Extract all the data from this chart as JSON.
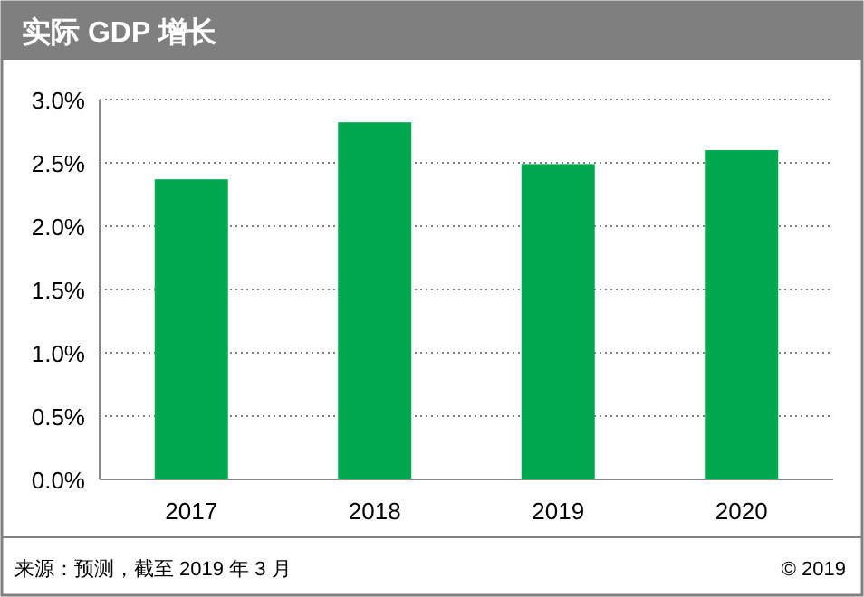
{
  "chart_data": {
    "type": "bar",
    "title": "实际 GDP 增长",
    "categories": [
      "2017",
      "2018",
      "2019",
      "2020"
    ],
    "values": [
      2.37,
      2.82,
      2.49,
      2.6
    ],
    "color": "#00a94f",
    "ylim": [
      0,
      3
    ],
    "yticks": [
      {
        "value": 0,
        "label": "0.0%"
      },
      {
        "value": 0.5,
        "label": "0.5%"
      },
      {
        "value": 1,
        "label": "1.0%"
      },
      {
        "value": 1.5,
        "label": "1.5%"
      },
      {
        "value": 2,
        "label": "2.0%"
      },
      {
        "value": 2.5,
        "label": "2.5%"
      },
      {
        "value": 3,
        "label": "3.0%"
      }
    ],
    "grid": "y",
    "annotations": [
      "来源：预测，截至 2019 年 3 月",
      "© 2019"
    ]
  }
}
